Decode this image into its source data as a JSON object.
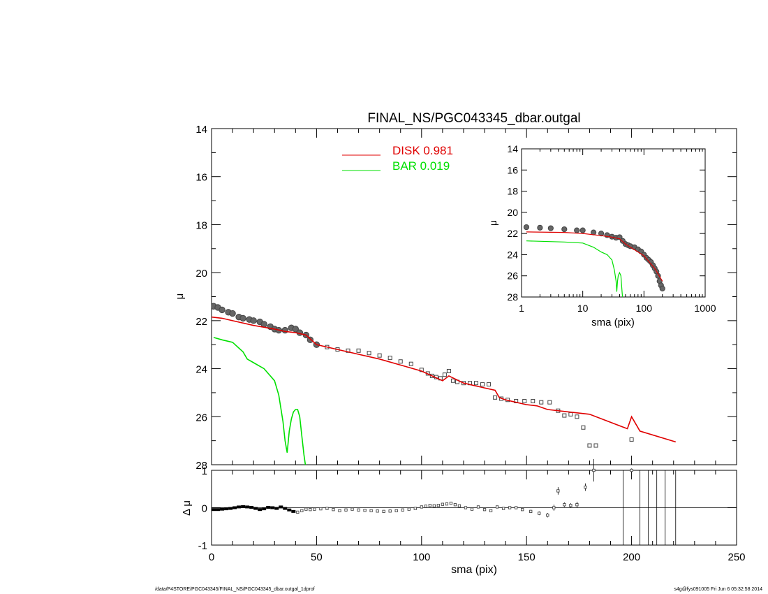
{
  "title": "FINAL_NS/PGC043345_dbar.outgal",
  "footer": {
    "left": "/data/P4STORE/PGC043345/FINAL_NS/PGC043345_dbar.outgal_1dprof",
    "right": "s4g@fys091005  Fri Jun  6 05:32:58 2014"
  },
  "colors": {
    "disk": "#e00000",
    "bar": "#00e000",
    "data": "#000000",
    "point": "#555555"
  },
  "chart_data": [
    {
      "name": "main-profile",
      "type": "line",
      "title": "FINAL_NS/PGC043345_dbar.outgal",
      "xlabel": "",
      "ylabel": "μ",
      "xlim": [
        0,
        250
      ],
      "ylim": [
        28,
        14
      ],
      "yticks": [
        "14",
        "16",
        "18",
        "20",
        "22",
        "24",
        "26",
        "28"
      ],
      "legend": {
        "placement": "top-center",
        "entries": [
          {
            "label": "DISK  0.981",
            "color": "#e00000"
          },
          {
            "label": "BAR  0.019",
            "color": "#00e000"
          }
        ]
      },
      "series": [
        {
          "name": "DISK  0.981",
          "color": "#e00000",
          "x": [
            0,
            5,
            10,
            20,
            30,
            35,
            40,
            45,
            50,
            60,
            70,
            80,
            90,
            100,
            105,
            110,
            113,
            120,
            130,
            135,
            137,
            140,
            150,
            155,
            160,
            170,
            180,
            198,
            200,
            204,
            221
          ],
          "y": [
            21.85,
            21.9,
            22.0,
            22.2,
            22.35,
            22.45,
            22.5,
            22.6,
            23.0,
            23.2,
            23.4,
            23.6,
            23.85,
            24.1,
            24.3,
            24.5,
            24.3,
            24.6,
            24.8,
            24.9,
            25.2,
            25.3,
            25.5,
            25.55,
            25.7,
            25.8,
            25.9,
            26.5,
            26.0,
            26.6,
            27.05
          ]
        },
        {
          "name": "BAR  0.019",
          "color": "#00e000",
          "x": [
            1,
            5,
            10,
            15,
            17,
            20,
            25,
            30,
            32,
            34,
            35,
            36,
            37,
            38,
            39,
            40,
            41,
            42,
            43,
            44,
            45
          ],
          "y": [
            22.7,
            22.8,
            22.9,
            23.3,
            23.6,
            23.75,
            24.0,
            24.5,
            25.1,
            26.2,
            27.0,
            27.5,
            26.6,
            26.1,
            25.8,
            25.7,
            25.7,
            26.0,
            26.8,
            27.6,
            28.2
          ]
        },
        {
          "name": "data",
          "color": "#000000",
          "x": [
            1,
            3,
            5,
            8,
            10,
            13,
            15,
            18,
            20,
            23,
            25,
            28,
            30,
            32,
            35,
            38,
            40,
            42,
            45,
            47,
            50,
            55,
            60,
            65,
            70,
            75,
            80,
            85,
            90,
            95,
            100,
            103,
            105,
            107,
            109,
            111,
            113,
            115,
            117,
            120,
            123,
            126,
            129,
            132,
            135,
            138,
            141,
            145,
            149,
            153,
            157,
            161,
            165,
            168,
            171,
            174,
            177,
            180,
            183,
            200
          ],
          "y": [
            21.4,
            21.45,
            21.55,
            21.65,
            21.7,
            21.85,
            21.9,
            21.95,
            22.0,
            22.05,
            22.15,
            22.25,
            22.35,
            22.4,
            22.4,
            22.3,
            22.35,
            22.5,
            22.6,
            22.8,
            23.0,
            23.1,
            23.2,
            23.25,
            23.25,
            23.35,
            23.45,
            23.55,
            23.7,
            23.8,
            24.05,
            24.2,
            24.3,
            24.35,
            24.4,
            24.25,
            24.1,
            24.5,
            24.55,
            24.6,
            24.6,
            24.6,
            24.65,
            24.65,
            25.2,
            25.25,
            25.3,
            25.35,
            25.35,
            25.35,
            25.4,
            25.4,
            25.75,
            25.95,
            25.9,
            26.0,
            26.45,
            27.2,
            27.2,
            26.95
          ]
        }
      ]
    },
    {
      "name": "residual",
      "type": "scatter",
      "xlabel": "sma (pix)",
      "ylabel": "Δ μ",
      "xlim": [
        0,
        250
      ],
      "ylim": [
        -1,
        1
      ],
      "xticks": [
        "0",
        "50",
        "100",
        "150",
        "200",
        "250"
      ],
      "yticks": [
        "1",
        "0",
        "-1"
      ],
      "series": [
        {
          "name": "residuals",
          "x": [
            1,
            3,
            5,
            7,
            9,
            11,
            13,
            15,
            17,
            19,
            21,
            23,
            25,
            27,
            29,
            31,
            33,
            35,
            37,
            39,
            41,
            43,
            45,
            47,
            49,
            52,
            55,
            58,
            61,
            64,
            67,
            70,
            73,
            76,
            79,
            82,
            85,
            88,
            91,
            94,
            97,
            100,
            102,
            104,
            106,
            108,
            110,
            112,
            114,
            116,
            118,
            121,
            124,
            127,
            130,
            133,
            136,
            139,
            142,
            145,
            148,
            152,
            156,
            160,
            163,
            165,
            168,
            171,
            174,
            178,
            182,
            200
          ],
          "y": [
            -0.05,
            -0.05,
            -0.04,
            -0.03,
            -0.02,
            0.0,
            0.02,
            0.03,
            0.02,
            0.01,
            -0.02,
            -0.05,
            -0.03,
            0.01,
            0.0,
            -0.02,
            0.02,
            -0.02,
            -0.06,
            -0.1,
            -0.12,
            -0.08,
            -0.04,
            -0.05,
            -0.04,
            -0.03,
            -0.02,
            -0.05,
            -0.08,
            -0.06,
            -0.04,
            -0.06,
            -0.07,
            -0.08,
            -0.09,
            -0.1,
            -0.09,
            -0.08,
            -0.06,
            -0.04,
            -0.02,
            0.02,
            0.04,
            0.06,
            0.05,
            0.06,
            0.09,
            0.1,
            0.12,
            0.08,
            0.05,
            0.0,
            -0.04,
            0.02,
            -0.05,
            -0.08,
            0.02,
            -0.02,
            0.0,
            0.0,
            -0.05,
            -0.1,
            -0.15,
            -0.2,
            0.0,
            0.45,
            0.08,
            0.06,
            0.08,
            0.55,
            1.0,
            1.0
          ],
          "err": [
            0.01,
            0.01,
            0.01,
            0.01,
            0.01,
            0.01,
            0.01,
            0.01,
            0.01,
            0.01,
            0.01,
            0.01,
            0.01,
            0.01,
            0.01,
            0.01,
            0.01,
            0.01,
            0.01,
            0.01,
            0.01,
            0.01,
            0.01,
            0.01,
            0.01,
            0.01,
            0.01,
            0.01,
            0.01,
            0.01,
            0.01,
            0.01,
            0.01,
            0.01,
            0.01,
            0.01,
            0.01,
            0.01,
            0.01,
            0.01,
            0.01,
            0.01,
            0.01,
            0.01,
            0.01,
            0.01,
            0.01,
            0.01,
            0.01,
            0.01,
            0.01,
            0.01,
            0.01,
            0.01,
            0.01,
            0.02,
            0.02,
            0.02,
            0.02,
            0.02,
            0.03,
            0.04,
            0.05,
            0.06,
            0.08,
            0.1,
            0.06,
            0.06,
            0.08,
            0.1,
            0.3,
            0.05
          ]
        }
      ],
      "vertical_lines_x": [
        196,
        204,
        208,
        212,
        216,
        221
      ]
    },
    {
      "name": "inset",
      "type": "line",
      "xlabel": "sma (pix)",
      "ylabel": "μ",
      "xscale": "log",
      "xlim": [
        1,
        1000
      ],
      "ylim": [
        28,
        14
      ],
      "xticks": [
        "1",
        "10",
        "100",
        "1000"
      ],
      "yticks": [
        "14",
        "16",
        "18",
        "20",
        "22",
        "24",
        "26",
        "28"
      ],
      "series": [
        {
          "name": "data",
          "color": "#000000",
          "x": [
            1.2,
            2,
            3,
            5,
            8,
            10,
            15,
            20,
            25,
            30,
            35,
            40,
            45,
            50,
            55,
            60,
            70,
            80,
            90,
            100,
            110,
            120,
            130,
            140,
            150,
            160,
            170,
            180,
            190,
            200
          ],
          "y": [
            21.4,
            21.45,
            21.5,
            21.6,
            21.7,
            21.7,
            21.9,
            22.0,
            22.15,
            22.3,
            22.4,
            22.35,
            22.7,
            23.0,
            23.1,
            23.2,
            23.3,
            23.5,
            23.7,
            24.0,
            24.3,
            24.5,
            24.7,
            25.0,
            25.3,
            25.6,
            26.0,
            26.5,
            26.9,
            27.2
          ]
        },
        {
          "name": "disk",
          "color": "#e00000",
          "x": [
            1.2,
            5,
            10,
            20,
            30,
            40,
            50,
            100,
            150,
            200
          ],
          "y": [
            21.85,
            21.9,
            22.0,
            22.2,
            22.35,
            22.5,
            23.0,
            24.1,
            25.3,
            26.5
          ]
        },
        {
          "name": "bar",
          "color": "#00e000",
          "x": [
            1.2,
            5,
            10,
            15,
            20,
            25,
            30,
            33,
            35,
            36,
            37,
            38,
            40,
            42,
            43,
            44,
            45
          ],
          "y": [
            22.7,
            22.8,
            22.9,
            23.3,
            23.75,
            24.0,
            24.5,
            25.5,
            26.5,
            27.5,
            26.5,
            26.0,
            25.7,
            26.0,
            26.8,
            27.6,
            28.2
          ]
        }
      ]
    }
  ]
}
